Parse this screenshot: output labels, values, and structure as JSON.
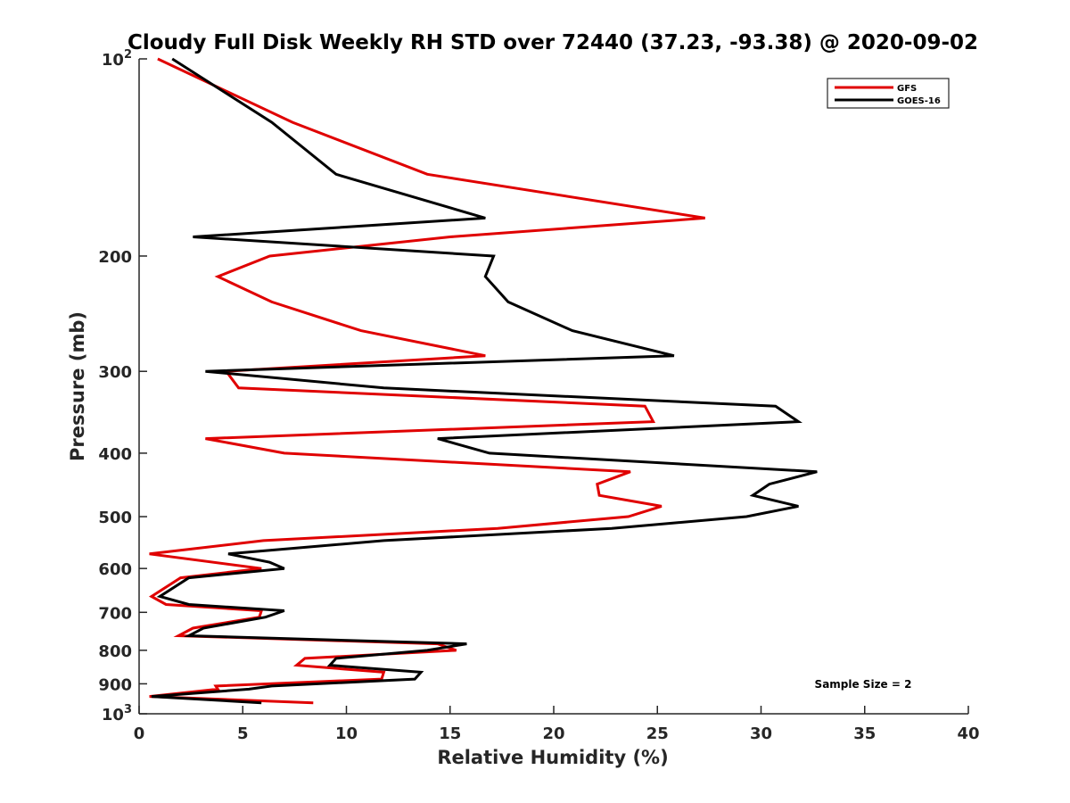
{
  "chart_data": {
    "type": "line",
    "title": "Cloudy Full Disk Weekly RH STD over 72440 (37.23, -93.38) @ 2020-09-02",
    "xlabel": "Relative Humidity (%)",
    "ylabel": "Pressure (mb)",
    "xlim": [
      0,
      40
    ],
    "ylim": [
      100,
      1000
    ],
    "y_scale": "log",
    "y_reversed": true,
    "grid": false,
    "legend_position": "top-right",
    "x_ticks": [
      "0",
      "5",
      "10",
      "15",
      "20",
      "25",
      "30",
      "35",
      "40"
    ],
    "y_ticks": [
      {
        "value": 100,
        "base": "10",
        "exp": "2"
      },
      {
        "value": 200,
        "label": "200"
      },
      {
        "value": 300,
        "label": "300"
      },
      {
        "value": 400,
        "label": "400"
      },
      {
        "value": 500,
        "label": "500"
      },
      {
        "value": 600,
        "label": "600"
      },
      {
        "value": 700,
        "label": "700"
      },
      {
        "value": 800,
        "label": "800"
      },
      {
        "value": 900,
        "label": "900"
      },
      {
        "value": 1000,
        "base": "10",
        "exp": "3"
      }
    ],
    "annotation": "Sample Size = 2",
    "series": [
      {
        "name": "GFS",
        "color": "#e00000",
        "points": [
          [
            0.9,
            100
          ],
          [
            7.4,
            125
          ],
          [
            13.9,
            150
          ],
          [
            27.3,
            175
          ],
          [
            15.0,
            187
          ],
          [
            6.3,
            200
          ],
          [
            3.8,
            215
          ],
          [
            6.4,
            235
          ],
          [
            10.7,
            260
          ],
          [
            16.7,
            284
          ],
          [
            4.2,
            300
          ],
          [
            4.8,
            318
          ],
          [
            24.4,
            339
          ],
          [
            24.8,
            358
          ],
          [
            3.2,
            380
          ],
          [
            7.0,
            400
          ],
          [
            23.7,
            427
          ],
          [
            22.1,
            446
          ],
          [
            22.2,
            464
          ],
          [
            25.2,
            482
          ],
          [
            23.6,
            500
          ],
          [
            17.3,
            521
          ],
          [
            6.0,
            544
          ],
          [
            0.5,
            570
          ],
          [
            5.9,
            600
          ],
          [
            2.0,
            620
          ],
          [
            0.6,
            662
          ],
          [
            1.3,
            681
          ],
          [
            5.9,
            696
          ],
          [
            5.8,
            712
          ],
          [
            2.6,
            740
          ],
          [
            1.9,
            760
          ],
          [
            14.4,
            782
          ],
          [
            15.3,
            800
          ],
          [
            8.0,
            823
          ],
          [
            7.6,
            843
          ],
          [
            11.8,
            864
          ],
          [
            11.7,
            885
          ],
          [
            3.7,
            907
          ],
          [
            3.8,
            917
          ],
          [
            0.5,
            941
          ],
          [
            8.4,
            962
          ]
        ]
      },
      {
        "name": "GOES-16",
        "color": "#000000",
        "points": [
          [
            1.6,
            100
          ],
          [
            6.4,
            125
          ],
          [
            9.5,
            150
          ],
          [
            16.7,
            175
          ],
          [
            2.6,
            187
          ],
          [
            17.1,
            200
          ],
          [
            16.7,
            215
          ],
          [
            17.8,
            235
          ],
          [
            20.9,
            260
          ],
          [
            25.8,
            284
          ],
          [
            3.2,
            300
          ],
          [
            11.8,
            318
          ],
          [
            30.7,
            339
          ],
          [
            31.8,
            358
          ],
          [
            14.4,
            380
          ],
          [
            16.9,
            400
          ],
          [
            32.7,
            427
          ],
          [
            30.4,
            446
          ],
          [
            29.6,
            464
          ],
          [
            31.8,
            482
          ],
          [
            29.3,
            500
          ],
          [
            22.8,
            521
          ],
          [
            11.8,
            544
          ],
          [
            4.3,
            570
          ],
          [
            6.3,
            587
          ],
          [
            7.0,
            600
          ],
          [
            2.4,
            620
          ],
          [
            1.0,
            662
          ],
          [
            2.4,
            681
          ],
          [
            7.0,
            696
          ],
          [
            6.1,
            712
          ],
          [
            3.1,
            740
          ],
          [
            2.4,
            760
          ],
          [
            15.8,
            782
          ],
          [
            13.9,
            800
          ],
          [
            9.5,
            823
          ],
          [
            9.2,
            843
          ],
          [
            13.6,
            864
          ],
          [
            13.3,
            885
          ],
          [
            6.4,
            907
          ],
          [
            5.3,
            917
          ],
          [
            0.6,
            941
          ],
          [
            5.9,
            962
          ]
        ]
      }
    ]
  }
}
